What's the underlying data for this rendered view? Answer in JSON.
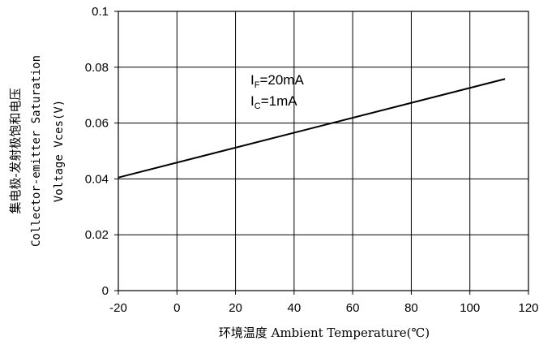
{
  "chart_data": {
    "type": "line",
    "x": [
      -20,
      112
    ],
    "series": [
      {
        "values": [
          0.0405,
          0.0758
        ]
      }
    ],
    "xlabel": "环境温度 Ambient Temperature(℃)",
    "ylabel_lines": [
      "集电极-发射极饱和电压",
      "Collector-emitter Saturation",
      "Voltage Vces(V)"
    ],
    "xlim": [
      -20,
      120
    ],
    "ylim": [
      0,
      0.1
    ],
    "xticks": [
      -20,
      0,
      20,
      40,
      60,
      80,
      100,
      120
    ],
    "yticks": [
      "0",
      "0.02",
      "0.04",
      "0.06",
      "0.08",
      "0.1"
    ],
    "grid": true,
    "annotations": [
      {
        "main": "I",
        "sub": "F",
        "rest": "=20mA"
      },
      {
        "main": "I",
        "sub": "C",
        "rest": "=1mA"
      }
    ]
  }
}
